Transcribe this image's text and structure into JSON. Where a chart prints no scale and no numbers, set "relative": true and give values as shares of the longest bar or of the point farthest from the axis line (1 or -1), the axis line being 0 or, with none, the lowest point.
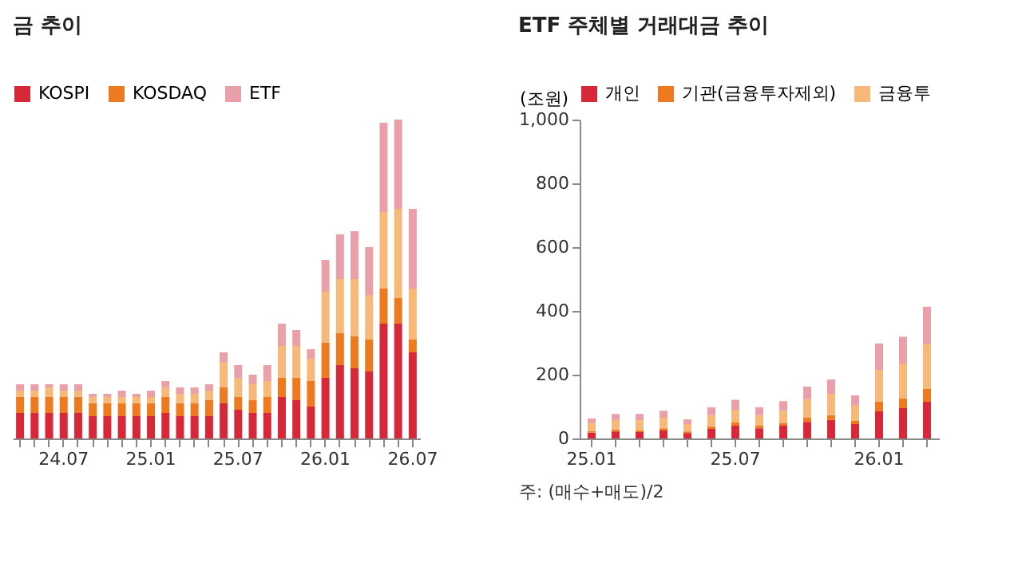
{
  "chart_data": [
    {
      "type": "bar",
      "title": "금 추이",
      "stacked": true,
      "relative": true,
      "grid": false,
      "legend": "top left",
      "categories": [
        null,
        null,
        null,
        "24.07",
        null,
        null,
        null,
        null,
        null,
        "25.01",
        null,
        null,
        null,
        null,
        null,
        "25.07",
        null,
        null,
        null,
        null,
        null,
        "26.01",
        null,
        null,
        null,
        null,
        null,
        "26.07"
      ],
      "series": [
        {
          "name": "KOSPI",
          "color": "#d62839",
          "values": [
            0.08,
            0.08,
            0.08,
            0.08,
            0.08,
            0.07,
            0.07,
            0.07,
            0.07,
            0.07,
            0.08,
            0.07,
            0.07,
            0.07,
            0.11,
            0.09,
            0.08,
            0.08,
            0.13,
            0.12,
            0.1,
            0.19,
            0.23,
            0.22,
            0.21,
            0.36,
            0.36,
            0.27
          ]
        },
        {
          "name": "KOSDAQ",
          "color": "#ee7a1f",
          "values": [
            0.05,
            0.05,
            0.05,
            0.05,
            0.05,
            0.04,
            0.04,
            0.04,
            0.04,
            0.04,
            0.05,
            0.04,
            0.04,
            0.05,
            0.05,
            0.04,
            0.04,
            0.05,
            0.06,
            0.07,
            0.08,
            0.11,
            0.1,
            0.1,
            0.1,
            0.11,
            0.08,
            0.04
          ]
        },
        {
          "color": "#f6b97a",
          "values": [
            0.02,
            0.02,
            0.03,
            0.02,
            0.02,
            0.02,
            0.02,
            0.02,
            0.02,
            0.02,
            0.03,
            0.03,
            0.03,
            0.03,
            0.08,
            0.06,
            0.05,
            0.05,
            0.1,
            0.1,
            0.07,
            0.16,
            0.17,
            0.18,
            0.14,
            0.24,
            0.28,
            0.16
          ]
        },
        {
          "name": "ETF",
          "color": "#e9a0a8",
          "values": [
            0.02,
            0.02,
            0.01,
            0.02,
            0.02,
            0.01,
            0.01,
            0.02,
            0.01,
            0.02,
            0.02,
            0.02,
            0.02,
            0.02,
            0.03,
            0.04,
            0.03,
            0.05,
            0.07,
            0.05,
            0.03,
            0.1,
            0.14,
            0.15,
            0.15,
            0.28,
            0.28,
            0.25
          ]
        }
      ]
    },
    {
      "type": "bar",
      "title": "ETF 주체별 거래대금 추이",
      "ylabel": "(조원)",
      "stacked": true,
      "grid": false,
      "legend": "top left",
      "ylim": [
        0,
        1000
      ],
      "yticks": [
        0,
        {
          "value": 200,
          "label": "200"
        },
        400,
        600,
        800,
        {
          "value": 1000,
          "label": "1,000"
        }
      ],
      "annotations": [
        "주: (매수+매도)/2"
      ],
      "categories": [
        "25.01",
        null,
        null,
        null,
        null,
        null,
        "25.07",
        null,
        null,
        null,
        null,
        null,
        "26.01",
        null,
        null
      ],
      "series": [
        {
          "name": "개인",
          "color": "#d62839",
          "values": [
            18,
            22,
            20,
            25,
            17,
            30,
            40,
            32,
            40,
            52,
            58,
            45,
            85,
            95,
            115
          ]
        },
        {
          "name": "기관(금융투자제외)",
          "color": "#ee7a1f",
          "values": [
            5,
            6,
            6,
            7,
            5,
            8,
            10,
            8,
            9,
            13,
            15,
            10,
            30,
            30,
            40
          ]
        },
        {
          "name": "금융투",
          "color": "#f6b97a",
          "values": [
            25,
            30,
            31,
            33,
            23,
            35,
            40,
            33,
            38,
            58,
            67,
            48,
            100,
            110,
            140
          ]
        },
        {
          "color": "#e9a0a8",
          "values": [
            15,
            19,
            20,
            22,
            15,
            25,
            31,
            25,
            30,
            40,
            45,
            32,
            83,
            84,
            118
          ]
        }
      ]
    }
  ]
}
